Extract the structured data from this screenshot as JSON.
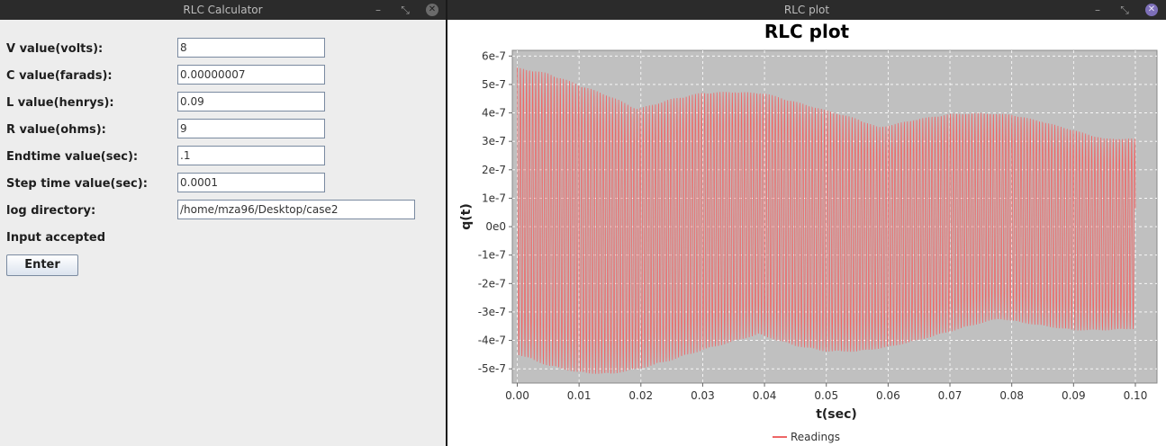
{
  "calculator": {
    "window_title": "RLC Calculator",
    "fields": [
      {
        "label": "V value(volts):",
        "value": "8"
      },
      {
        "label": "C value(farads):",
        "value": "0.00000007"
      },
      {
        "label": "L value(henrys):",
        "value": "0.09"
      },
      {
        "label": "R value(ohms):",
        "value": "9"
      },
      {
        "label": "Endtime value(sec):",
        "value": ".1"
      },
      {
        "label": "Step time value(sec):",
        "value": "0.0001"
      },
      {
        "label": "log directory:",
        "value": "/home/mza96/Desktop/case2"
      }
    ],
    "status": "Input accepted",
    "enter_label": "Enter"
  },
  "plot_window": {
    "window_title": "RLC plot",
    "title_icons": {
      "minimize": "minimize-icon",
      "restore": "restore-icon",
      "close": "close-icon"
    }
  },
  "chart_data": {
    "type": "line",
    "title": "RLC plot",
    "xlabel": "t(sec)",
    "ylabel": "q(t)",
    "xlim": [
      0.0,
      0.1
    ],
    "ylim": [
      -5.5e-07,
      6.2e-07
    ],
    "xticks": [
      0.0,
      0.01,
      0.02,
      0.03,
      0.04,
      0.05,
      0.06,
      0.07,
      0.08,
      0.09,
      0.1
    ],
    "xtick_labels": [
      "0.00",
      "0.01",
      "0.02",
      "0.03",
      "0.04",
      "0.05",
      "0.06",
      "0.07",
      "0.08",
      "0.09",
      "0.10"
    ],
    "yticks": [
      6e-07,
      5e-07,
      4e-07,
      3e-07,
      2e-07,
      1e-07,
      0,
      -1e-07,
      -2e-07,
      -3e-07,
      -4e-07,
      -5e-07
    ],
    "ytick_labels": [
      "6e-7",
      "5e-7",
      "4e-7",
      "3e-7",
      "2e-7",
      "1e-7",
      "0e0",
      "-1e-7",
      "-2e-7",
      "-3e-7",
      "-4e-7",
      "-5e-7"
    ],
    "grid": true,
    "legend_position": "bottom-center",
    "series": [
      {
        "name": "Readings",
        "color": "#ee6666",
        "upper_envelope": {
          "x": [
            0.0,
            0.005,
            0.01,
            0.015,
            0.0195,
            0.025,
            0.03,
            0.035,
            0.04,
            0.045,
            0.05,
            0.055,
            0.0585,
            0.065,
            0.07,
            0.075,
            0.08,
            0.085,
            0.09,
            0.095,
            0.1
          ],
          "y": [
            5.6e-07,
            5.4e-07,
            5e-07,
            4.6e-07,
            4.15e-07,
            4.5e-07,
            4.72e-07,
            4.75e-07,
            4.7e-07,
            4.4e-07,
            4.1e-07,
            3.8e-07,
            3.5e-07,
            3.8e-07,
            3.97e-07,
            4e-07,
            3.95e-07,
            3.7e-07,
            3.4e-07,
            3.1e-07,
            3.1e-07
          ]
        },
        "lower_envelope": {
          "x": [
            0.0,
            0.005,
            0.01,
            0.015,
            0.02,
            0.025,
            0.03,
            0.035,
            0.039,
            0.045,
            0.05,
            0.055,
            0.06,
            0.065,
            0.07,
            0.075,
            0.078,
            0.085,
            0.09,
            0.095,
            0.1
          ],
          "y": [
            -4.5e-07,
            -4.9e-07,
            -5.15e-07,
            -5.2e-07,
            -5e-07,
            -4.7e-07,
            -4.35e-07,
            -4.05e-07,
            -3.8e-07,
            -4.2e-07,
            -4.4e-07,
            -4.4e-07,
            -4.25e-07,
            -4e-07,
            -3.7e-07,
            -3.4e-07,
            -3.25e-07,
            -3.5e-07,
            -3.65e-07,
            -3.65e-07,
            -3.6e-07
          ]
        },
        "oscillation_period": 0.000497
      }
    ]
  }
}
